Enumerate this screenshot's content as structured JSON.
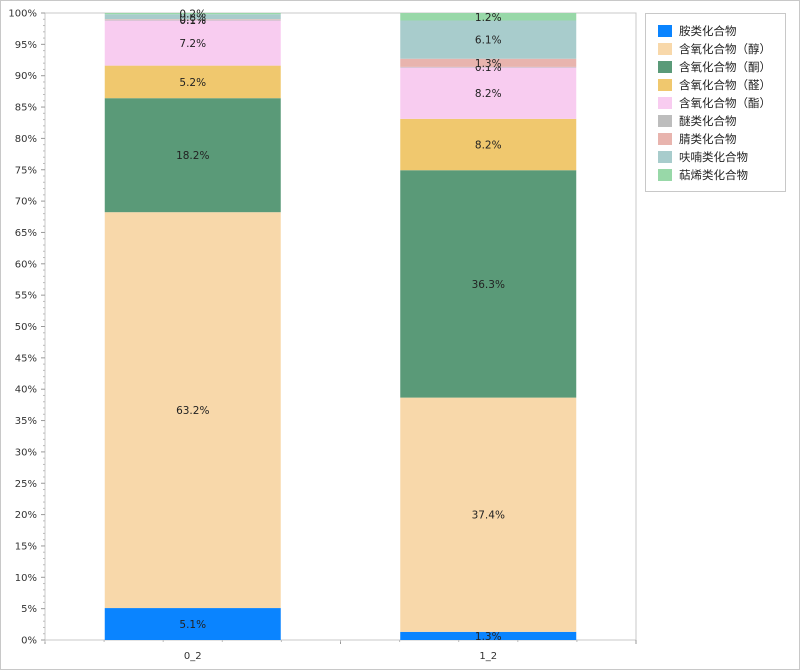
{
  "chart_data": {
    "type": "bar",
    "stacked": true,
    "normalized": true,
    "categories": [
      "0_2",
      "1_2"
    ],
    "ylim": [
      0,
      100
    ],
    "yticks": [
      "0%",
      "5%",
      "10%",
      "15%",
      "20%",
      "25%",
      "30%",
      "35%",
      "40%",
      "45%",
      "50%",
      "55%",
      "60%",
      "65%",
      "70%",
      "75%",
      "80%",
      "85%",
      "90%",
      "95%",
      "100%"
    ],
    "legend_position": "top-right",
    "series": [
      {
        "name": "胺类化合物",
        "color": "#0a84ff",
        "values": [
          5.1,
          1.3
        ],
        "labels": [
          "5.1%",
          "1.3%"
        ]
      },
      {
        "name": "含氧化合物（醇）",
        "color": "#f8d8aa",
        "values": [
          63.2,
          37.4
        ],
        "labels": [
          "63.2%",
          "37.4%"
        ]
      },
      {
        "name": "含氧化合物（酮）",
        "color": "#5a9a78",
        "values": [
          18.2,
          36.3
        ],
        "labels": [
          "18.2%",
          "36.3%"
        ]
      },
      {
        "name": "含氧化合物（醛）",
        "color": "#f0c86e",
        "values": [
          5.2,
          8.2
        ],
        "labels": [
          "5.2%",
          "8.2%"
        ]
      },
      {
        "name": "含氧化合物（酯）",
        "color": "#f8ccf0",
        "values": [
          7.2,
          8.2
        ],
        "labels": [
          "7.2%",
          "8.2%"
        ]
      },
      {
        "name": "醚类化合物",
        "color": "#bdbdbd",
        "values": [
          0.1,
          0.1
        ],
        "labels": [
          "0.1%",
          "0.1%"
        ]
      },
      {
        "name": "腈类化合物",
        "color": "#e8b4ae",
        "values": [
          0.1,
          1.3
        ],
        "labels": [
          "0.1%",
          "1.3%"
        ]
      },
      {
        "name": "呋喃类化合物",
        "color": "#a8cccc",
        "values": [
          0.8,
          6.1
        ],
        "labels": [
          "0.8%",
          "6.1%"
        ]
      },
      {
        "name": "萜烯类化合物",
        "color": "#98d8a8",
        "values": [
          0.2,
          1.2
        ],
        "labels": [
          "0.2%",
          "1.2%"
        ]
      }
    ]
  }
}
